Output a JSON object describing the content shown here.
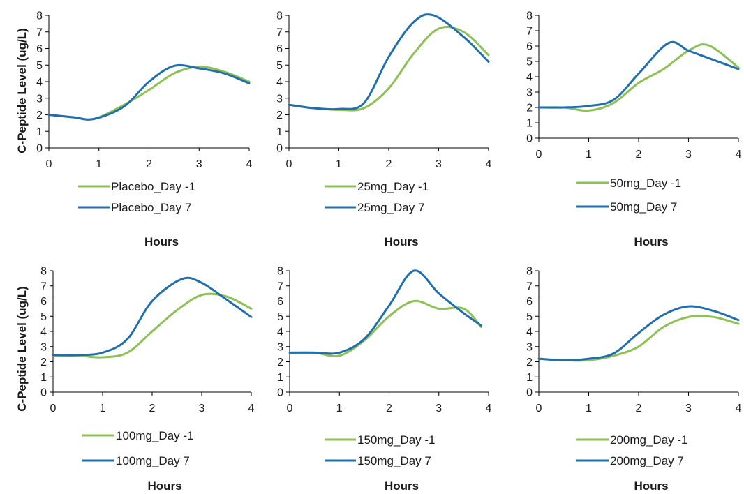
{
  "colors": {
    "day_minus_1": "#8dc153",
    "day_7": "#1f6fb0"
  },
  "ylabel": "C-Peptide Level (ug/L)",
  "chart_data": [
    {
      "type": "line",
      "xlabel": "Hours",
      "ylabel": "C-Peptide Level (ug/L)",
      "xlim": [
        0,
        4
      ],
      "ylim": [
        0,
        8
      ],
      "xticks": [
        "0",
        "1",
        "2",
        "3",
        "4"
      ],
      "yticks": [
        "0",
        "1",
        "2",
        "3",
        "4",
        "5",
        "6",
        "7",
        "8"
      ],
      "legend_position": "bottom",
      "series": [
        {
          "name": "Placebo_Day -1",
          "x": [
            0,
            0.5,
            0.9,
            1.5,
            2,
            2.5,
            3,
            3.5,
            4
          ],
          "y": [
            2.0,
            1.85,
            1.75,
            2.6,
            3.5,
            4.5,
            4.9,
            4.6,
            4.0
          ]
        },
        {
          "name": "Placebo_Day 7",
          "x": [
            0,
            0.5,
            0.9,
            1.5,
            2,
            2.5,
            3,
            3.5,
            4
          ],
          "y": [
            2.0,
            1.85,
            1.75,
            2.5,
            4.0,
            4.95,
            4.8,
            4.5,
            3.9
          ]
        }
      ]
    },
    {
      "type": "line",
      "xlabel": "Hours",
      "ylabel": "",
      "xlim": [
        0,
        4
      ],
      "ylim": [
        0,
        8
      ],
      "xticks": [
        "0",
        "1",
        "2",
        "3",
        "4"
      ],
      "yticks": [
        "0",
        "1",
        "2",
        "3",
        "4",
        "5",
        "6",
        "7",
        "8"
      ],
      "legend_position": "bottom",
      "series": [
        {
          "name": "25mg_Day -1",
          "x": [
            0,
            0.5,
            1,
            1.5,
            2,
            2.5,
            3,
            3.5,
            4
          ],
          "y": [
            2.6,
            2.4,
            2.3,
            2.4,
            3.6,
            5.7,
            7.2,
            7.0,
            5.6
          ]
        },
        {
          "name": "25mg_Day 7",
          "x": [
            0,
            0.5,
            1,
            1.5,
            2,
            2.5,
            2.9,
            3.5,
            4
          ],
          "y": [
            2.6,
            2.4,
            2.35,
            2.7,
            5.5,
            7.6,
            8.0,
            6.7,
            5.2
          ]
        }
      ]
    },
    {
      "type": "line",
      "xlabel": "Hours",
      "ylabel": "",
      "xlim": [
        0,
        4
      ],
      "ylim": [
        0,
        8
      ],
      "xticks": [
        "0",
        "1",
        "2",
        "3",
        "4"
      ],
      "yticks": [
        "0",
        "1",
        "2",
        "3",
        "4",
        "5",
        "6",
        "7",
        "8"
      ],
      "legend_position": "bottom",
      "series": [
        {
          "name": "50mg_Day -1",
          "x": [
            0,
            0.5,
            1,
            1.5,
            2,
            2.5,
            3,
            3.4,
            4
          ],
          "y": [
            2.0,
            2.0,
            1.8,
            2.3,
            3.6,
            4.5,
            5.7,
            6.05,
            4.6
          ]
        },
        {
          "name": "50mg_Day 7",
          "x": [
            0,
            0.5,
            1,
            1.5,
            2,
            2.6,
            3,
            3.5,
            4
          ],
          "y": [
            2.0,
            2.0,
            2.1,
            2.5,
            4.2,
            6.2,
            5.7,
            5.1,
            4.5
          ]
        }
      ]
    },
    {
      "type": "line",
      "xlabel": "Hours",
      "ylabel": "C-Peptide Level (ug/L)",
      "xlim": [
        0,
        4
      ],
      "ylim": [
        0,
        8
      ],
      "xticks": [
        "0",
        "1",
        "2",
        "3",
        "4"
      ],
      "yticks": [
        "0",
        "1",
        "2",
        "3",
        "4",
        "5",
        "6",
        "7",
        "8"
      ],
      "legend_position": "bottom",
      "series": [
        {
          "name": "100mg_Day -1",
          "x": [
            0,
            0.5,
            1,
            1.5,
            2,
            2.5,
            3,
            3.5,
            4
          ],
          "y": [
            2.4,
            2.4,
            2.3,
            2.6,
            4.0,
            5.4,
            6.4,
            6.3,
            5.5
          ]
        },
        {
          "name": "100mg_Day 7",
          "x": [
            0,
            0.5,
            1,
            1.5,
            2,
            2.6,
            3,
            3.5,
            4
          ],
          "y": [
            2.45,
            2.45,
            2.6,
            3.5,
            6.0,
            7.45,
            7.2,
            6.1,
            4.95
          ]
        }
      ]
    },
    {
      "type": "line",
      "xlabel": "Hours",
      "ylabel": "",
      "xlim": [
        0,
        4
      ],
      "ylim": [
        0,
        8
      ],
      "xticks": [
        "0",
        "1",
        "2",
        "3",
        "4"
      ],
      "yticks": [
        "0",
        "1",
        "2",
        "3",
        "4",
        "5",
        "6",
        "7",
        "8"
      ],
      "legend_position": "bottom",
      "series": [
        {
          "name": "150mg_Day -1",
          "x": [
            0,
            0.5,
            1,
            1.5,
            2,
            2.5,
            3,
            3.5,
            3.85
          ],
          "y": [
            2.6,
            2.6,
            2.4,
            3.4,
            5.0,
            6.0,
            5.5,
            5.5,
            4.3
          ]
        },
        {
          "name": "150mg_Day 7",
          "x": [
            0,
            0.5,
            1,
            1.5,
            2,
            2.5,
            3,
            3.5,
            3.85
          ],
          "y": [
            2.6,
            2.6,
            2.6,
            3.5,
            5.7,
            8.0,
            6.5,
            5.2,
            4.4
          ]
        }
      ]
    },
    {
      "type": "line",
      "xlabel": "Hours",
      "ylabel": "",
      "xlim": [
        0,
        4
      ],
      "ylim": [
        0,
        8
      ],
      "xticks": [
        "0",
        "1",
        "2",
        "3",
        "4"
      ],
      "yticks": [
        "0",
        "1",
        "2",
        "3",
        "4",
        "5",
        "6",
        "7",
        "8"
      ],
      "legend_position": "bottom",
      "series": [
        {
          "name": "200mg_Day -1",
          "x": [
            0,
            0.5,
            1,
            1.5,
            2,
            2.5,
            3,
            3.5,
            4
          ],
          "y": [
            2.2,
            2.1,
            2.1,
            2.4,
            3.0,
            4.3,
            4.95,
            4.95,
            4.5
          ]
        },
        {
          "name": "200mg_Day 7",
          "x": [
            0,
            0.5,
            1,
            1.5,
            2,
            2.5,
            3,
            3.5,
            4
          ],
          "y": [
            2.2,
            2.1,
            2.2,
            2.55,
            3.9,
            5.1,
            5.65,
            5.35,
            4.75
          ]
        }
      ]
    }
  ]
}
